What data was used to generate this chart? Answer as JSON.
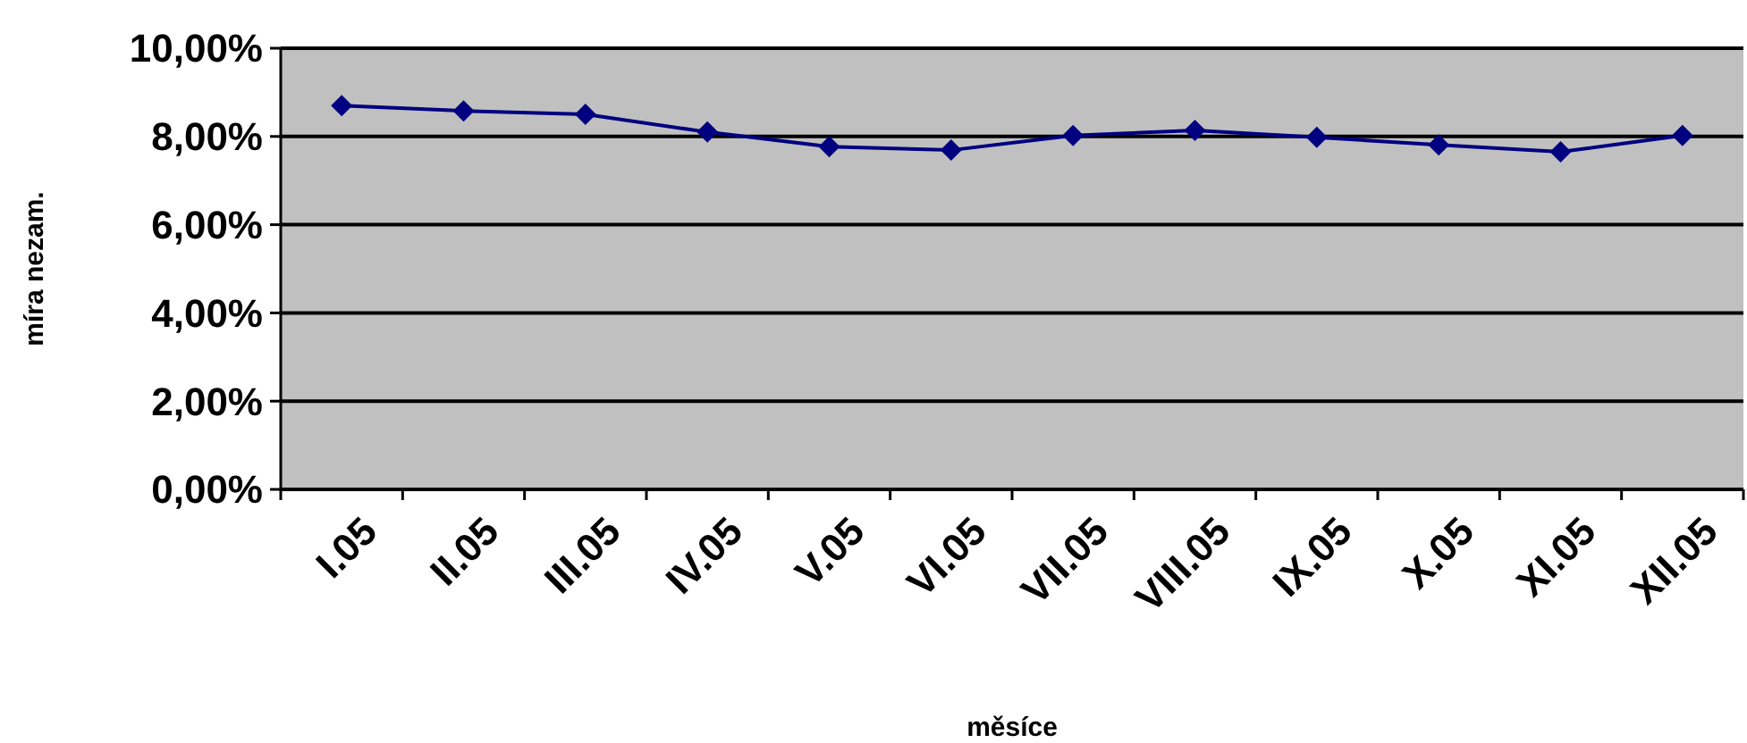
{
  "chart_data": {
    "type": "line",
    "xlabel": "měsíce",
    "ylabel": "míra nezam.",
    "categories": [
      "I.05",
      "II.05",
      "III.05",
      "IV.05",
      "V.05",
      "VI.05",
      "VII.05",
      "VIII.05",
      "IX.05",
      "X.05",
      "XI.05",
      "XII.05"
    ],
    "series": [
      {
        "color": "#000080",
        "values": [
          8.7,
          8.58,
          8.5,
          8.1,
          7.77,
          7.69,
          8.02,
          8.14,
          7.98,
          7.81,
          7.65,
          8.02
        ]
      }
    ],
    "ylim": [
      0,
      10
    ],
    "yticks": [
      {
        "value": 0,
        "label": "0,00%"
      },
      {
        "value": 2,
        "label": "2,00%"
      },
      {
        "value": 4,
        "label": "4,00%"
      },
      {
        "value": 6,
        "label": "6,00%"
      },
      {
        "value": 8,
        "label": "8,00%"
      },
      {
        "value": 10,
        "label": "10,00%"
      }
    ],
    "grid": "y",
    "marker": "diamond"
  }
}
